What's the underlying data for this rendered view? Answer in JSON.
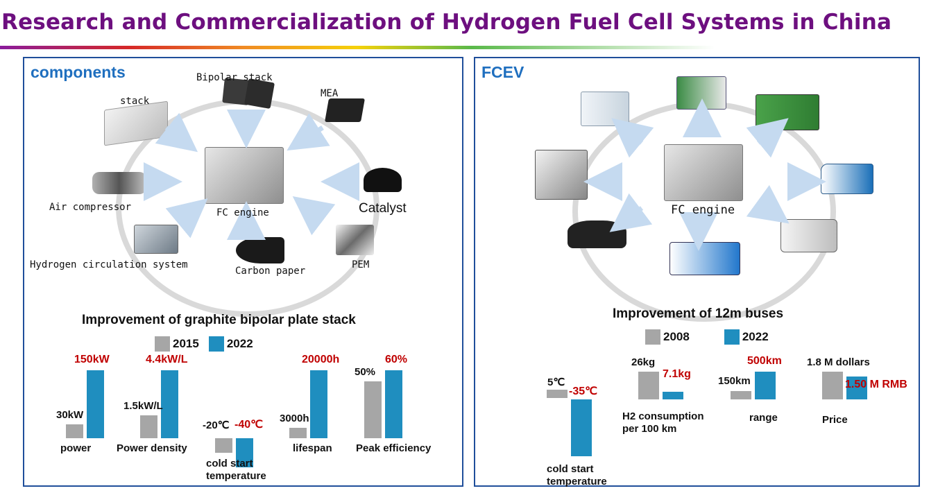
{
  "title": "Research and Commercialization of Hydrogen Fuel Cell Systems in China",
  "components": {
    "heading": "components",
    "center_label": "FC engine",
    "labels": {
      "stack": "stack",
      "bipolar": "Bipolar stack",
      "mea": "MEA",
      "air": "Air compressor",
      "catalyst": "Catalyst",
      "hydrogen": "Hydrogen circulation system",
      "carbon": "Carbon paper",
      "pem": "PEM"
    }
  },
  "fcev": {
    "heading": "FCEV",
    "center_label": "FC engine"
  },
  "legend": {
    "year_old_stack": "2015",
    "year_new_stack": "2022",
    "year_old_bus": "2008",
    "year_new_bus": "2022"
  },
  "colors": {
    "old": "#a6a6a6",
    "new": "#1f8ebf",
    "highlight": "#c00000",
    "title": "#6d0f7f",
    "panel_heading": "#1f6fbf"
  },
  "chart_data": [
    {
      "type": "bar",
      "title": "Improvement of graphite bipolar plate stack",
      "legend": [
        "2015",
        "2022"
      ],
      "categories": [
        "power",
        "Power density",
        "cold start temperature",
        "lifespan",
        "Peak efficiency"
      ],
      "series": [
        {
          "name": "2015",
          "values": [
            30,
            1.5,
            -20,
            3000,
            50
          ],
          "labels": [
            "30kW",
            "1.5kW/L",
            "-20℃",
            "3000h",
            "50%"
          ]
        },
        {
          "name": "2022",
          "values": [
            150,
            4.4,
            -40,
            20000,
            60
          ],
          "labels": [
            "150kW",
            "4.4kW/L",
            "-40℃",
            "20000h",
            "60%"
          ]
        }
      ]
    },
    {
      "type": "bar",
      "title": "Improvement of 12m buses",
      "legend": [
        "2008",
        "2022"
      ],
      "categories": [
        "cold start temperature",
        "H2 consumption per 100 km",
        "range",
        "Price"
      ],
      "series": [
        {
          "name": "2008",
          "values": [
            5,
            26,
            150,
            1.8
          ],
          "labels": [
            "5℃",
            "26kg",
            "150km",
            "1.8 M dollars"
          ]
        },
        {
          "name": "2022",
          "values": [
            -35,
            7.1,
            500,
            1.5
          ],
          "labels": [
            "-35℃",
            "7.1kg",
            "500km",
            "1.50 M RMB"
          ]
        }
      ]
    }
  ]
}
